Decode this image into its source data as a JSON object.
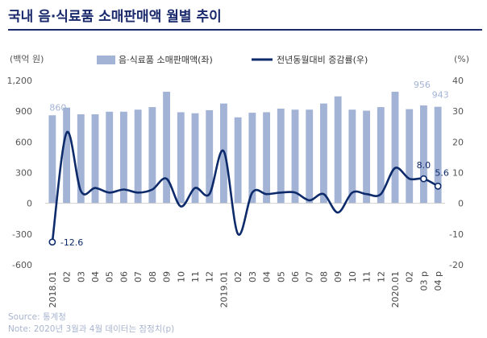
{
  "title": "국내 음·식료품 소매판매액 월별 추이",
  "source": "Source: 통계청",
  "note": "Note: 2020년 3월과 4월 데이터는 잠정치(p)",
  "chart_data": {
    "type": "bar+line",
    "left_unit": "(백억 원)",
    "right_unit": "(%)",
    "categories": [
      "2018.01",
      "02",
      "03",
      "04",
      "05",
      "06",
      "07",
      "08",
      "09",
      "10",
      "11",
      "12",
      "2019.01",
      "02",
      "03",
      "04",
      "05",
      "06",
      "07",
      "08",
      "09",
      "10",
      "11",
      "12",
      "2020.01",
      "02",
      "03 p",
      "04 p"
    ],
    "series": [
      {
        "name": "음·식료품 소매판매액(좌)",
        "axis": "left",
        "type": "bar",
        "color": "#a3b3d6",
        "values": [
          860,
          935,
          870,
          870,
          895,
          895,
          915,
          940,
          1090,
          890,
          880,
          910,
          975,
          840,
          885,
          890,
          925,
          915,
          915,
          975,
          1045,
          915,
          905,
          940,
          1090,
          920,
          956,
          943
        ]
      },
      {
        "name": "전년동월대비 증감률(우)",
        "axis": "right",
        "type": "line",
        "color": "#0d2a6b",
        "values": [
          -12.6,
          23.0,
          4.0,
          5.0,
          3.5,
          4.5,
          3.5,
          4.5,
          8.0,
          -1.0,
          5.0,
          3.0,
          17.0,
          -10.0,
          3.5,
          3.0,
          3.5,
          3.5,
          1.0,
          3.0,
          -3.0,
          3.5,
          3.0,
          3.0,
          11.5,
          8.0,
          8.0,
          5.6
        ]
      }
    ],
    "y_left": {
      "min": -600,
      "max": 1200,
      "ticks": [
        "-600",
        "-300",
        "0",
        "300",
        "600",
        "900",
        "1,200"
      ]
    },
    "y_right": {
      "min": -20,
      "max": 40,
      "ticks": [
        "-20",
        "-10",
        "0",
        "10",
        "20",
        "30",
        "40"
      ]
    },
    "bar_labels": [
      {
        "index": 0,
        "text": "860"
      },
      {
        "index": 26,
        "text": "956"
      },
      {
        "index": 27,
        "text": "943"
      }
    ],
    "line_labels": [
      {
        "index": 0,
        "text": "-12.6"
      },
      {
        "index": 26,
        "text": "8.0"
      },
      {
        "index": 27,
        "text": "5.6"
      }
    ],
    "grid": false,
    "legend_position": "top"
  }
}
